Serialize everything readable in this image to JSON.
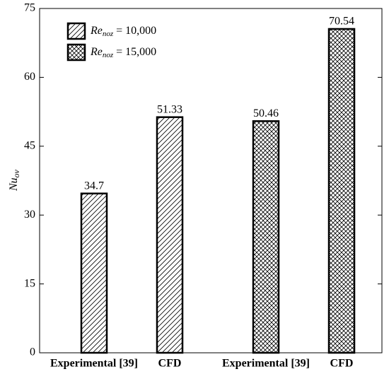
{
  "chart_data": {
    "type": "bar",
    "y_label": {
      "main": "Nu",
      "subscript": "ov"
    },
    "categories": [
      "Experimental [39]",
      "CFD",
      "Experimental [39]",
      "CFD"
    ],
    "series": [
      {
        "name": "Re",
        "name_subscript": "noz",
        "name_suffix": " = 10,000",
        "pattern": "diagonal",
        "color": "#000000",
        "values": [
          34.7,
          51.33,
          null,
          null
        ]
      },
      {
        "name": "Re",
        "name_subscript": "noz",
        "name_suffix": " = 15,000",
        "pattern": "crosshatch",
        "color": "#000000",
        "values": [
          null,
          null,
          50.46,
          70.54
        ]
      }
    ],
    "ylim": [
      0,
      75
    ],
    "yticks": [
      0,
      15,
      30,
      45,
      60,
      75
    ],
    "legend": "upper left"
  }
}
